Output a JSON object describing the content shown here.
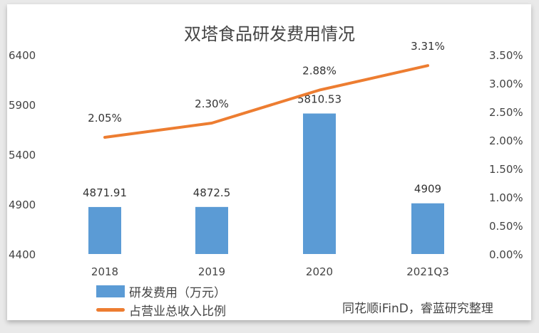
{
  "chart_data": {
    "type": "bar+line",
    "title": "双塔食品研发费用情况",
    "categories": [
      "2018",
      "2019",
      "2020",
      "2021Q3"
    ],
    "series": [
      {
        "name": "研发费用（万元）",
        "type": "bar",
        "axis": "left",
        "values": [
          4871.91,
          4872.5,
          5810.53,
          4909
        ],
        "labels": [
          "4871.91",
          "4872.5",
          "5810.53",
          "4909"
        ],
        "color": "#5b9bd5"
      },
      {
        "name": "占营业总收入比例",
        "type": "line",
        "axis": "right",
        "values": [
          2.05,
          2.3,
          2.88,
          3.31
        ],
        "labels": [
          "2.05%",
          "2.30%",
          "2.88%",
          "3.31%"
        ],
        "color": "#ed7d31"
      }
    ],
    "y_left": {
      "ylim": [
        4400,
        6400
      ],
      "ticks": [
        "4400",
        "4900",
        "5400",
        "5900",
        "6400"
      ]
    },
    "y_right": {
      "ylim": [
        0,
        3.5
      ],
      "ticks": [
        "0.00%",
        "0.50%",
        "1.00%",
        "1.50%",
        "2.00%",
        "2.50%",
        "3.00%",
        "3.50%"
      ]
    },
    "grid": false,
    "legend_placement": "bottom-left"
  },
  "source": "同花顺iFinD，睿蓝研究整理"
}
